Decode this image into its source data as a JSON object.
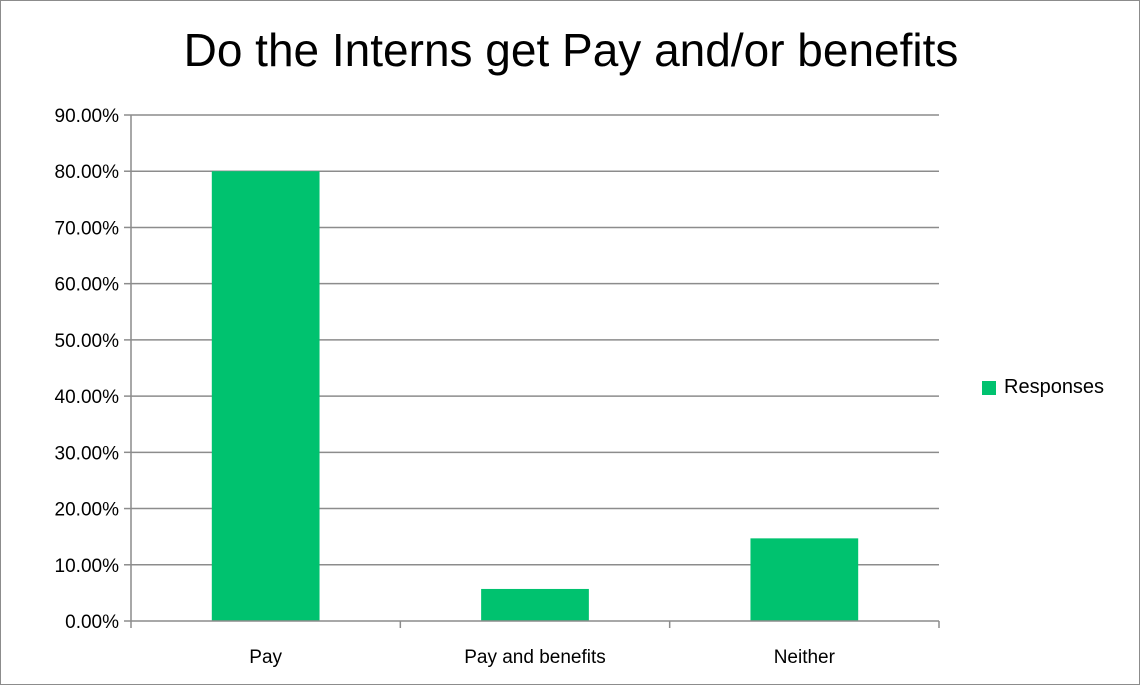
{
  "chart_data": {
    "type": "bar",
    "title": "Do the Interns get Pay and/or benefits",
    "categories": [
      "Pay",
      "Pay and benefits",
      "Neither"
    ],
    "series": [
      {
        "name": "Responses",
        "values": [
          80.0,
          5.7,
          14.7
        ],
        "color": "#00c26f"
      }
    ],
    "ylim": [
      0,
      90
    ],
    "yticks": [
      "0.00%",
      "10.00%",
      "20.00%",
      "30.00%",
      "40.00%",
      "50.00%",
      "60.00%",
      "70.00%",
      "80.00%",
      "90.00%"
    ],
    "ytick_values": [
      0,
      10,
      20,
      30,
      40,
      50,
      60,
      70,
      80,
      90
    ],
    "grid": true,
    "legend_position": "right"
  }
}
